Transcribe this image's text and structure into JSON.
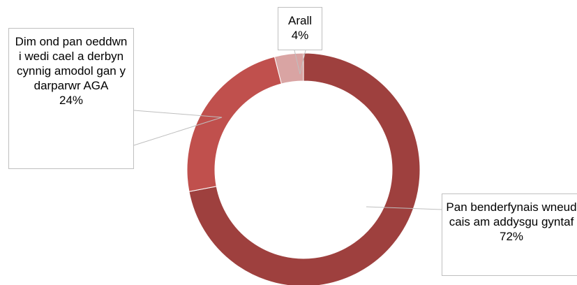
{
  "chart_data": {
    "type": "donut",
    "categories": [
      "Pan benderfynais wneud cais am addysgu gyntaf",
      "Dim ond pan oeddwn i wedi cael a derbyn cynnig amodol gan y darparwr AGA",
      "Arall"
    ],
    "values": [
      72,
      24,
      4
    ],
    "value_labels": [
      "72%",
      "24%",
      "4%"
    ],
    "colors": [
      "#9e403e",
      "#c0504d",
      "#d9a4a3"
    ]
  }
}
